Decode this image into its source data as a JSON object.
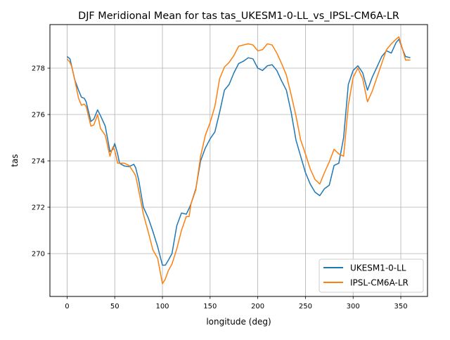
{
  "chart_data": {
    "type": "line",
    "title": "DJF Meridional Mean for tas tas_UKESM1-0-LL_vs_IPSL-CM6A-LR",
    "xlabel": "longitude (deg)",
    "ylabel": "tas",
    "xlim": [
      -18,
      378
    ],
    "ylim": [
      268.15,
      279.88
    ],
    "xticks": [
      0,
      50,
      100,
      150,
      200,
      250,
      300,
      350
    ],
    "yticks": [
      270,
      272,
      274,
      276,
      278
    ],
    "grid": true,
    "legend_placement": "lower-right",
    "x": [
      0,
      3,
      5,
      8,
      12,
      15,
      18,
      20,
      25,
      28,
      32,
      35,
      40,
      45,
      48,
      50,
      53,
      55,
      60,
      65,
      70,
      72,
      75,
      80,
      85,
      90,
      95,
      100,
      103,
      106,
      110,
      115,
      120,
      125,
      128,
      130,
      135,
      140,
      145,
      150,
      155,
      160,
      165,
      170,
      175,
      180,
      185,
      190,
      195,
      200,
      205,
      210,
      215,
      220,
      225,
      230,
      235,
      240,
      245,
      250,
      255,
      260,
      265,
      270,
      275,
      280,
      285,
      290,
      295,
      300,
      305,
      310,
      315,
      320,
      325,
      330,
      335,
      340,
      345,
      348,
      352,
      355,
      360
    ],
    "series": [
      {
        "name": "UKESM1-0-LL",
        "color": "#1f77b4",
        "values": [
          278.5,
          278.4,
          278.05,
          277.5,
          277.05,
          276.75,
          276.7,
          276.55,
          275.7,
          275.8,
          276.2,
          275.95,
          275.5,
          274.4,
          274.5,
          274.75,
          274.3,
          273.9,
          273.78,
          273.75,
          273.85,
          273.7,
          273.2,
          272.0,
          271.55,
          270.95,
          270.3,
          269.5,
          269.5,
          269.7,
          270.0,
          271.2,
          271.75,
          271.7,
          271.95,
          272.15,
          272.8,
          274.0,
          274.55,
          274.95,
          275.25,
          276.1,
          277.05,
          277.3,
          277.8,
          278.2,
          278.3,
          278.45,
          278.4,
          278.0,
          277.9,
          278.1,
          278.15,
          277.9,
          277.45,
          277.05,
          276.1,
          274.9,
          274.2,
          273.5,
          273.0,
          272.65,
          272.5,
          272.8,
          272.95,
          273.8,
          273.9,
          275.0,
          277.3,
          277.9,
          278.1,
          277.8,
          277.05,
          277.6,
          278.05,
          278.5,
          278.75,
          278.65,
          279.1,
          279.25,
          278.8,
          278.5,
          278.45
        ]
      },
      {
        "name": "IPSL-CM6A-LR",
        "color": "#ff7f0e",
        "values": [
          278.4,
          278.25,
          278.05,
          277.5,
          276.7,
          276.4,
          276.45,
          276.35,
          275.5,
          275.55,
          276.0,
          275.4,
          275.1,
          274.2,
          274.6,
          274.45,
          273.9,
          273.9,
          273.9,
          273.8,
          273.5,
          273.35,
          272.75,
          271.7,
          270.95,
          270.15,
          269.8,
          268.7,
          268.9,
          269.25,
          269.55,
          270.2,
          271.0,
          271.6,
          271.6,
          272.15,
          272.75,
          274.2,
          275.1,
          275.65,
          276.35,
          277.55,
          278.05,
          278.25,
          278.55,
          278.95,
          279.0,
          279.05,
          279.0,
          278.75,
          278.8,
          279.05,
          279.0,
          278.65,
          278.2,
          277.7,
          276.85,
          275.95,
          274.9,
          274.3,
          273.65,
          273.2,
          273.0,
          273.5,
          273.95,
          274.5,
          274.3,
          274.2,
          276.4,
          277.6,
          278.0,
          277.55,
          276.55,
          277.0,
          277.6,
          278.2,
          278.8,
          279.05,
          279.25,
          279.35,
          278.8,
          278.35,
          278.35
        ]
      }
    ]
  }
}
